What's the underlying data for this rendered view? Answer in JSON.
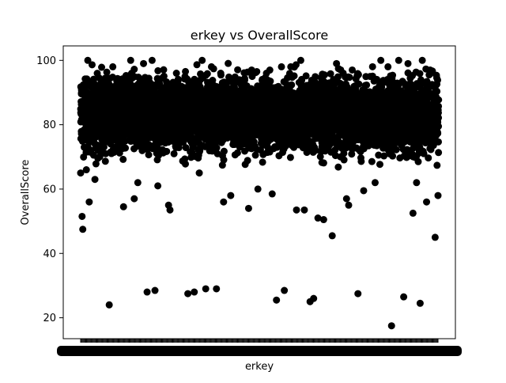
{
  "chart_data": {
    "type": "scatter",
    "title": "erkey vs OverallScore",
    "xlabel": "erkey",
    "ylabel": "OverallScore",
    "ylim": [
      13.5,
      104.5
    ],
    "yticks": [
      20,
      40,
      60,
      80,
      100
    ],
    "x_tick_labels": "illegible (hundreds of overlapping categorical labels)",
    "grid": false,
    "marker_color": "#000000",
    "series": [
      {
        "x_index": [
          0,
          2,
          3,
          5,
          8,
          12,
          20,
          29,
          35,
          40,
          60,
          75,
          80,
          93,
          104,
          108,
          123,
          125,
          150,
          159,
          166,
          175,
          190,
          200,
          210,
          235,
          248,
          268,
          274,
          285,
          302,
          313,
          321,
          326,
          332,
          340,
          352,
          372,
          375,
          388,
          396,
          412,
          435,
          452,
          465,
          470,
          475,
          484,
          496,
          500,
          10,
          45,
          70,
          88,
          100,
          134,
          146,
          170,
          183,
          196,
          222,
          240,
          260,
          281,
          294,
          308,
          337,
          358,
          380,
          405,
          420,
          430,
          445,
          458,
          478,
          489
        ],
        "y": [
          65,
          51.5,
          47.5,
          73,
          66,
          56,
          63,
          77,
          71,
          24,
          54.5,
          57,
          62,
          28,
          28.5,
          61,
          55,
          53.5,
          27.5,
          28,
          65,
          29,
          29,
          56,
          58,
          54,
          60,
          58.5,
          25.5,
          28.5,
          53.5,
          53.5,
          25,
          26,
          51,
          50.5,
          45.5,
          57,
          55,
          27.5,
          59.5,
          62,
          17.5,
          26.5,
          52.5,
          62,
          24.5,
          56,
          45,
          58,
          100,
          98,
          100,
          99,
          100,
          96,
          95,
          100,
          98,
          96,
          94,
          95,
          96,
          98,
          98,
          100,
          93,
          99,
          97,
          95,
          100,
          98,
          100,
          99,
          100,
          97
        ]
      }
    ]
  }
}
